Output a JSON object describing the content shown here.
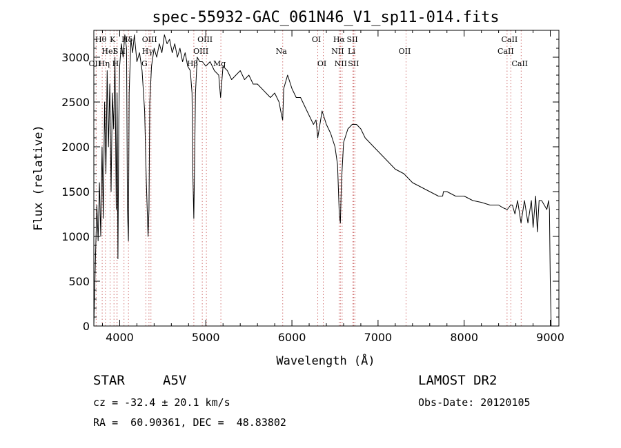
{
  "info": {
    "object_class": "STAR",
    "subclass": "A5V",
    "survey": "LAMOST DR2",
    "cz_text": "cz = -32.4 ± 20.1 km/s",
    "obsdate_text": "Obs-Date: 20120105",
    "radec_text": "RA =  60.90361, DEC =  48.83802"
  },
  "chart_data": {
    "type": "line",
    "title": "spec-55932-GAC_061N46_V1_sp11-014.fits",
    "xlabel": "Wavelength (Å)",
    "ylabel": "Flux (relative)",
    "xlim": [
      3700,
      9100
    ],
    "ylim": [
      0,
      3300
    ],
    "xticks": [
      4000,
      5000,
      6000,
      7000,
      8000,
      9000
    ],
    "yticks": [
      0,
      500,
      1000,
      1500,
      2000,
      2500,
      3000
    ],
    "grid": false,
    "series": [
      {
        "x": [
          3700,
          3720,
          3735,
          3750,
          3765,
          3780,
          3795,
          3810,
          3825,
          3840,
          3855,
          3870,
          3885,
          3900,
          3915,
          3930,
          3945,
          3960,
          3970,
          3980,
          3990,
          4000,
          4020,
          4040,
          4060,
          4080,
          4090,
          4101,
          4110,
          4130,
          4150,
          4170,
          4200,
          4230,
          4260,
          4290,
          4310,
          4330,
          4340,
          4350,
          4370,
          4400,
          4430,
          4460,
          4490,
          4520,
          4550,
          4580,
          4610,
          4640,
          4670,
          4700,
          4730,
          4760,
          4790,
          4820,
          4840,
          4850,
          4861,
          4870,
          4880,
          4900,
          4930,
          4960,
          5000,
          5050,
          5100,
          5150,
          5172,
          5200,
          5250,
          5300,
          5350,
          5400,
          5450,
          5500,
          5550,
          5600,
          5650,
          5700,
          5750,
          5800,
          5850,
          5880,
          5893,
          5905,
          5950,
          6000,
          6050,
          6100,
          6150,
          6200,
          6250,
          6280,
          6300,
          6350,
          6400,
          6450,
          6500,
          6530,
          6550,
          6563,
          6575,
          6600,
          6650,
          6700,
          6750,
          6800,
          6850,
          6900,
          6950,
          7000,
          7100,
          7200,
          7300,
          7400,
          7500,
          7600,
          7700,
          7750,
          7760,
          7800,
          7900,
          8000,
          8100,
          8200,
          8300,
          8400,
          8450,
          8500,
          8540,
          8560,
          8590,
          8620,
          8660,
          8700,
          8740,
          8780,
          8800,
          8830,
          8850,
          8870,
          8900,
          8930,
          8960,
          8980,
          8990,
          9000,
          9010
        ],
        "y": [
          0,
          800,
          1350,
          950,
          1600,
          1000,
          2000,
          1200,
          2500,
          1700,
          2850,
          2000,
          2700,
          1500,
          2600,
          2200,
          3000,
          1300,
          2600,
          750,
          2300,
          2900,
          3150,
          3000,
          3250,
          3100,
          1300,
          950,
          2600,
          3200,
          3050,
          3250,
          2950,
          3050,
          2850,
          2400,
          1600,
          1000,
          1300,
          2500,
          2900,
          3100,
          3000,
          3150,
          3050,
          3250,
          3150,
          3200,
          3050,
          3150,
          3000,
          3100,
          2950,
          3050,
          2900,
          2850,
          2600,
          1700,
          1200,
          1800,
          2600,
          3000,
          2950,
          2950,
          2900,
          2950,
          2850,
          2800,
          2550,
          2900,
          2850,
          2750,
          2800,
          2850,
          2750,
          2800,
          2700,
          2700,
          2650,
          2600,
          2550,
          2600,
          2500,
          2350,
          2300,
          2650,
          2800,
          2650,
          2550,
          2550,
          2450,
          2350,
          2250,
          2300,
          2100,
          2400,
          2250,
          2150,
          2000,
          1800,
          1250,
          1150,
          1600,
          2050,
          2200,
          2250,
          2250,
          2200,
          2100,
          2050,
          2000,
          1950,
          1850,
          1750,
          1700,
          1600,
          1550,
          1500,
          1450,
          1450,
          1500,
          1500,
          1450,
          1450,
          1400,
          1380,
          1350,
          1350,
          1320,
          1300,
          1350,
          1350,
          1250,
          1400,
          1150,
          1400,
          1150,
          1400,
          1100,
          1450,
          1050,
          1400,
          1400,
          1350,
          1300,
          1400,
          1300,
          500,
          0
        ]
      }
    ],
    "emission_lines": [
      {
        "label": "Hθ",
        "x": 3797,
        "row": 0
      },
      {
        "label": "K",
        "x": 3934,
        "row": 0
      },
      {
        "label": "Hδ",
        "x": 4102,
        "row": 0
      },
      {
        "label": "OIII",
        "x": 4363,
        "row": 0
      },
      {
        "label": "OIII",
        "x": 5007,
        "row": 0
      },
      {
        "label": "OI",
        "x": 6300,
        "row": 0
      },
      {
        "label": "Hα",
        "x": 6563,
        "row": 0
      },
      {
        "label": "SII",
        "x": 6717,
        "row": 0
      },
      {
        "label": "CaII",
        "x": 8542,
        "row": 0
      },
      {
        "label": "HeI",
        "x": 3889,
        "row": 1
      },
      {
        "label": "S",
        "x": 3970,
        "row": 1
      },
      {
        "label": "II",
        "x": 4050,
        "row": 1
      },
      {
        "label": "Hγ",
        "x": 4340,
        "row": 1
      },
      {
        "label": "OIII",
        "x": 4959,
        "row": 1
      },
      {
        "label": "Na",
        "x": 5893,
        "row": 1
      },
      {
        "label": "NII",
        "x": 6548,
        "row": 1
      },
      {
        "label": "Li",
        "x": 6708,
        "row": 1
      },
      {
        "label": "OII",
        "x": 7325,
        "row": 1
      },
      {
        "label": "CaII",
        "x": 8498,
        "row": 1
      },
      {
        "label": "OII",
        "x": 3727,
        "row": 2
      },
      {
        "label": "Hη",
        "x": 3835,
        "row": 2
      },
      {
        "label": "H",
        "x": 3968,
        "row": 2
      },
      {
        "label": "G",
        "x": 4304,
        "row": 2
      },
      {
        "label": "Hβ",
        "x": 4861,
        "row": 2
      },
      {
        "label": "Mg",
        "x": 5175,
        "row": 2
      },
      {
        "label": "OI",
        "x": 6364,
        "row": 2
      },
      {
        "label": "NII",
        "x": 6583,
        "row": 2
      },
      {
        "label": "SII",
        "x": 6731,
        "row": 2
      },
      {
        "label": "CaII",
        "x": 8662,
        "row": 2
      }
    ]
  }
}
